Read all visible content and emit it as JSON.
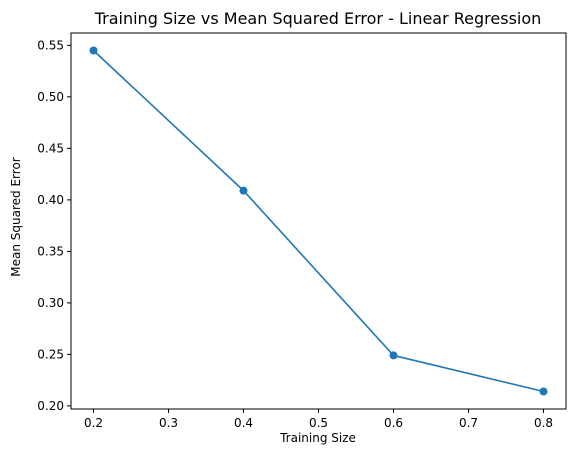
{
  "chart_data": {
    "type": "line",
    "title": "Training Size vs Mean Squared Error - Linear Regression",
    "xlabel": "Training Size",
    "ylabel": "Mean Squared Error",
    "xlim": [
      0.17,
      0.83
    ],
    "ylim": [
      0.197,
      0.562
    ],
    "xticks": [
      "0.2",
      "0.3",
      "0.4",
      "0.5",
      "0.6",
      "0.7",
      "0.8"
    ],
    "yticks": [
      "0.20",
      "0.25",
      "0.30",
      "0.35",
      "0.40",
      "0.45",
      "0.50",
      "0.55"
    ],
    "grid": false,
    "series": [
      {
        "color": "#1f77b4",
        "marker": "circle",
        "x": [
          0.2,
          0.4,
          0.6,
          0.8
        ],
        "y": [
          0.545,
          0.409,
          0.249,
          0.214
        ]
      }
    ]
  }
}
